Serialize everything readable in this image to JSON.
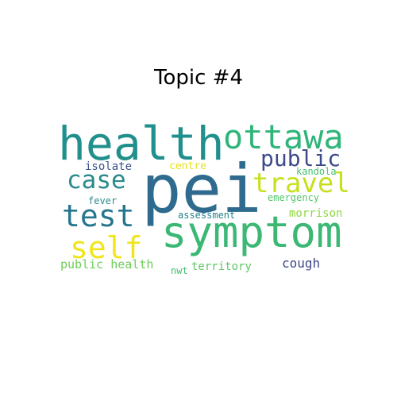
{
  "title": "Topic #4",
  "words": [
    {
      "text": "pei",
      "color": "#2f6b8e"
    },
    {
      "text": "symptom",
      "color": "#3bb874"
    },
    {
      "text": "health",
      "color": "#21908c"
    },
    {
      "text": "ottawa",
      "color": "#2fb57a"
    },
    {
      "text": "travel",
      "color": "#c8df1d"
    },
    {
      "text": "test",
      "color": "#26778e"
    },
    {
      "text": "self",
      "color": "#f0e51c"
    },
    {
      "text": "case",
      "color": "#2a8a8c"
    },
    {
      "text": "public",
      "color": "#3e4a8a"
    },
    {
      "text": "isolate",
      "color": "#3b528b"
    },
    {
      "text": "centre",
      "color": "#e7e419"
    },
    {
      "text": "kandola",
      "color": "#47c16e"
    },
    {
      "text": "fever",
      "color": "#2b8c8c"
    },
    {
      "text": "emergency",
      "color": "#52c569"
    },
    {
      "text": "assessment",
      "color": "#26828e"
    },
    {
      "text": "morrison",
      "color": "#8fd744"
    },
    {
      "text": "public health",
      "color": "#6ece58"
    },
    {
      "text": "territory",
      "color": "#5cc863"
    },
    {
      "text": "nwt",
      "color": "#44bf70"
    },
    {
      "text": "cough",
      "color": "#3e4989"
    }
  ]
}
